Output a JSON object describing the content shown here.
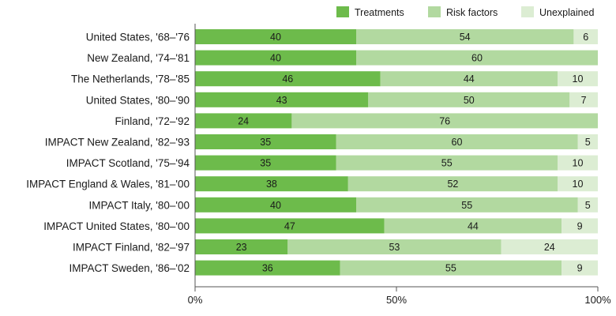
{
  "chart_data": {
    "type": "bar",
    "orientation": "horizontal",
    "stacked": true,
    "categories": [
      "United States, '68–'76",
      "New Zealand, '74–'81",
      "The Netherlands, '78–'85",
      "United States, '80–'90",
      "Finland, '72–'92",
      "IMPACT New Zealand, '82–'93",
      "IMPACT Scotland, '75–'94",
      "IMPACT England & Wales, '81–'00",
      "IMPACT Italy, '80–'00",
      "IMPACT United States, '80–'00",
      "IMPACT Finland, '82–'97",
      "IMPACT Sweden, '86–'02"
    ],
    "series": [
      {
        "name": "Treatments",
        "color": "#6dbb4b",
        "values": [
          40,
          40,
          46,
          43,
          24,
          35,
          35,
          38,
          40,
          47,
          23,
          36
        ]
      },
      {
        "name": "Risk factors",
        "color": "#b2d9a0",
        "values": [
          54,
          60,
          44,
          50,
          76,
          60,
          55,
          52,
          55,
          44,
          53,
          55
        ]
      },
      {
        "name": "Unexplained",
        "color": "#dcedd3",
        "values": [
          6,
          null,
          10,
          7,
          null,
          5,
          10,
          10,
          5,
          9,
          24,
          9
        ]
      }
    ],
    "xlim": [
      0,
      100
    ],
    "xticks": [
      "0%",
      "50%",
      "100%"
    ],
    "legend_position": "top-right",
    "grid": false,
    "title": "",
    "xlabel": "",
    "ylabel": ""
  }
}
